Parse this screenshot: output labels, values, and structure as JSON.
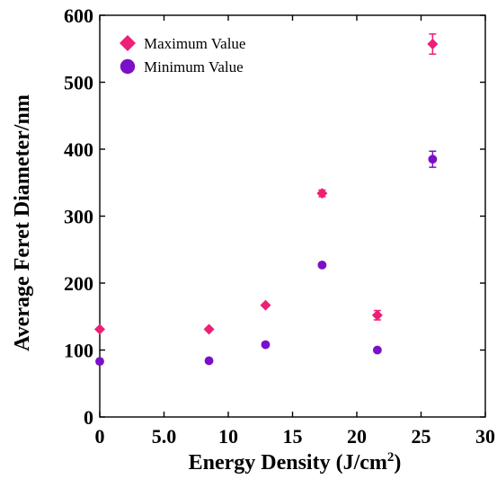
{
  "chart_data": {
    "type": "scatter",
    "title": "",
    "xlabel": "Energy Density (J/cm",
    "xlabel_superscript": "2",
    "xlabel_suffix": ")",
    "ylabel": "Average Feret Diameter/nm",
    "xlim": [
      0,
      30
    ],
    "ylim": [
      0,
      600
    ],
    "x_ticks": [
      0,
      5,
      10,
      15,
      20,
      25,
      30
    ],
    "x_tick_labels": [
      "0",
      "5.0",
      "10",
      "15",
      "20",
      "25",
      "30"
    ],
    "y_ticks": [
      0,
      100,
      200,
      300,
      400,
      500,
      600
    ],
    "y_tick_labels": [
      "0",
      "100",
      "200",
      "300",
      "400",
      "500",
      "600"
    ],
    "grid": false,
    "legend_position": "top-left",
    "series": [
      {
        "name": "Maximum Value",
        "marker": "diamond",
        "color": "#ee1f75",
        "points": [
          {
            "x": 0,
            "y": 131,
            "err": 0
          },
          {
            "x": 8.5,
            "y": 131,
            "err": 0
          },
          {
            "x": 12.9,
            "y": 167,
            "err": 0
          },
          {
            "x": 17.3,
            "y": 334,
            "err": 5
          },
          {
            "x": 21.6,
            "y": 152,
            "err": 7
          },
          {
            "x": 25.9,
            "y": 557,
            "err": 15
          }
        ]
      },
      {
        "name": "Minimum Value",
        "marker": "circle",
        "color": "#7a10c8",
        "points": [
          {
            "x": 0,
            "y": 83,
            "err": 0
          },
          {
            "x": 8.5,
            "y": 84,
            "err": 0
          },
          {
            "x": 12.9,
            "y": 108,
            "err": 0
          },
          {
            "x": 17.3,
            "y": 227,
            "err": 0
          },
          {
            "x": 21.6,
            "y": 100,
            "err": 0
          },
          {
            "x": 25.9,
            "y": 385,
            "err": 12
          }
        ]
      }
    ]
  }
}
